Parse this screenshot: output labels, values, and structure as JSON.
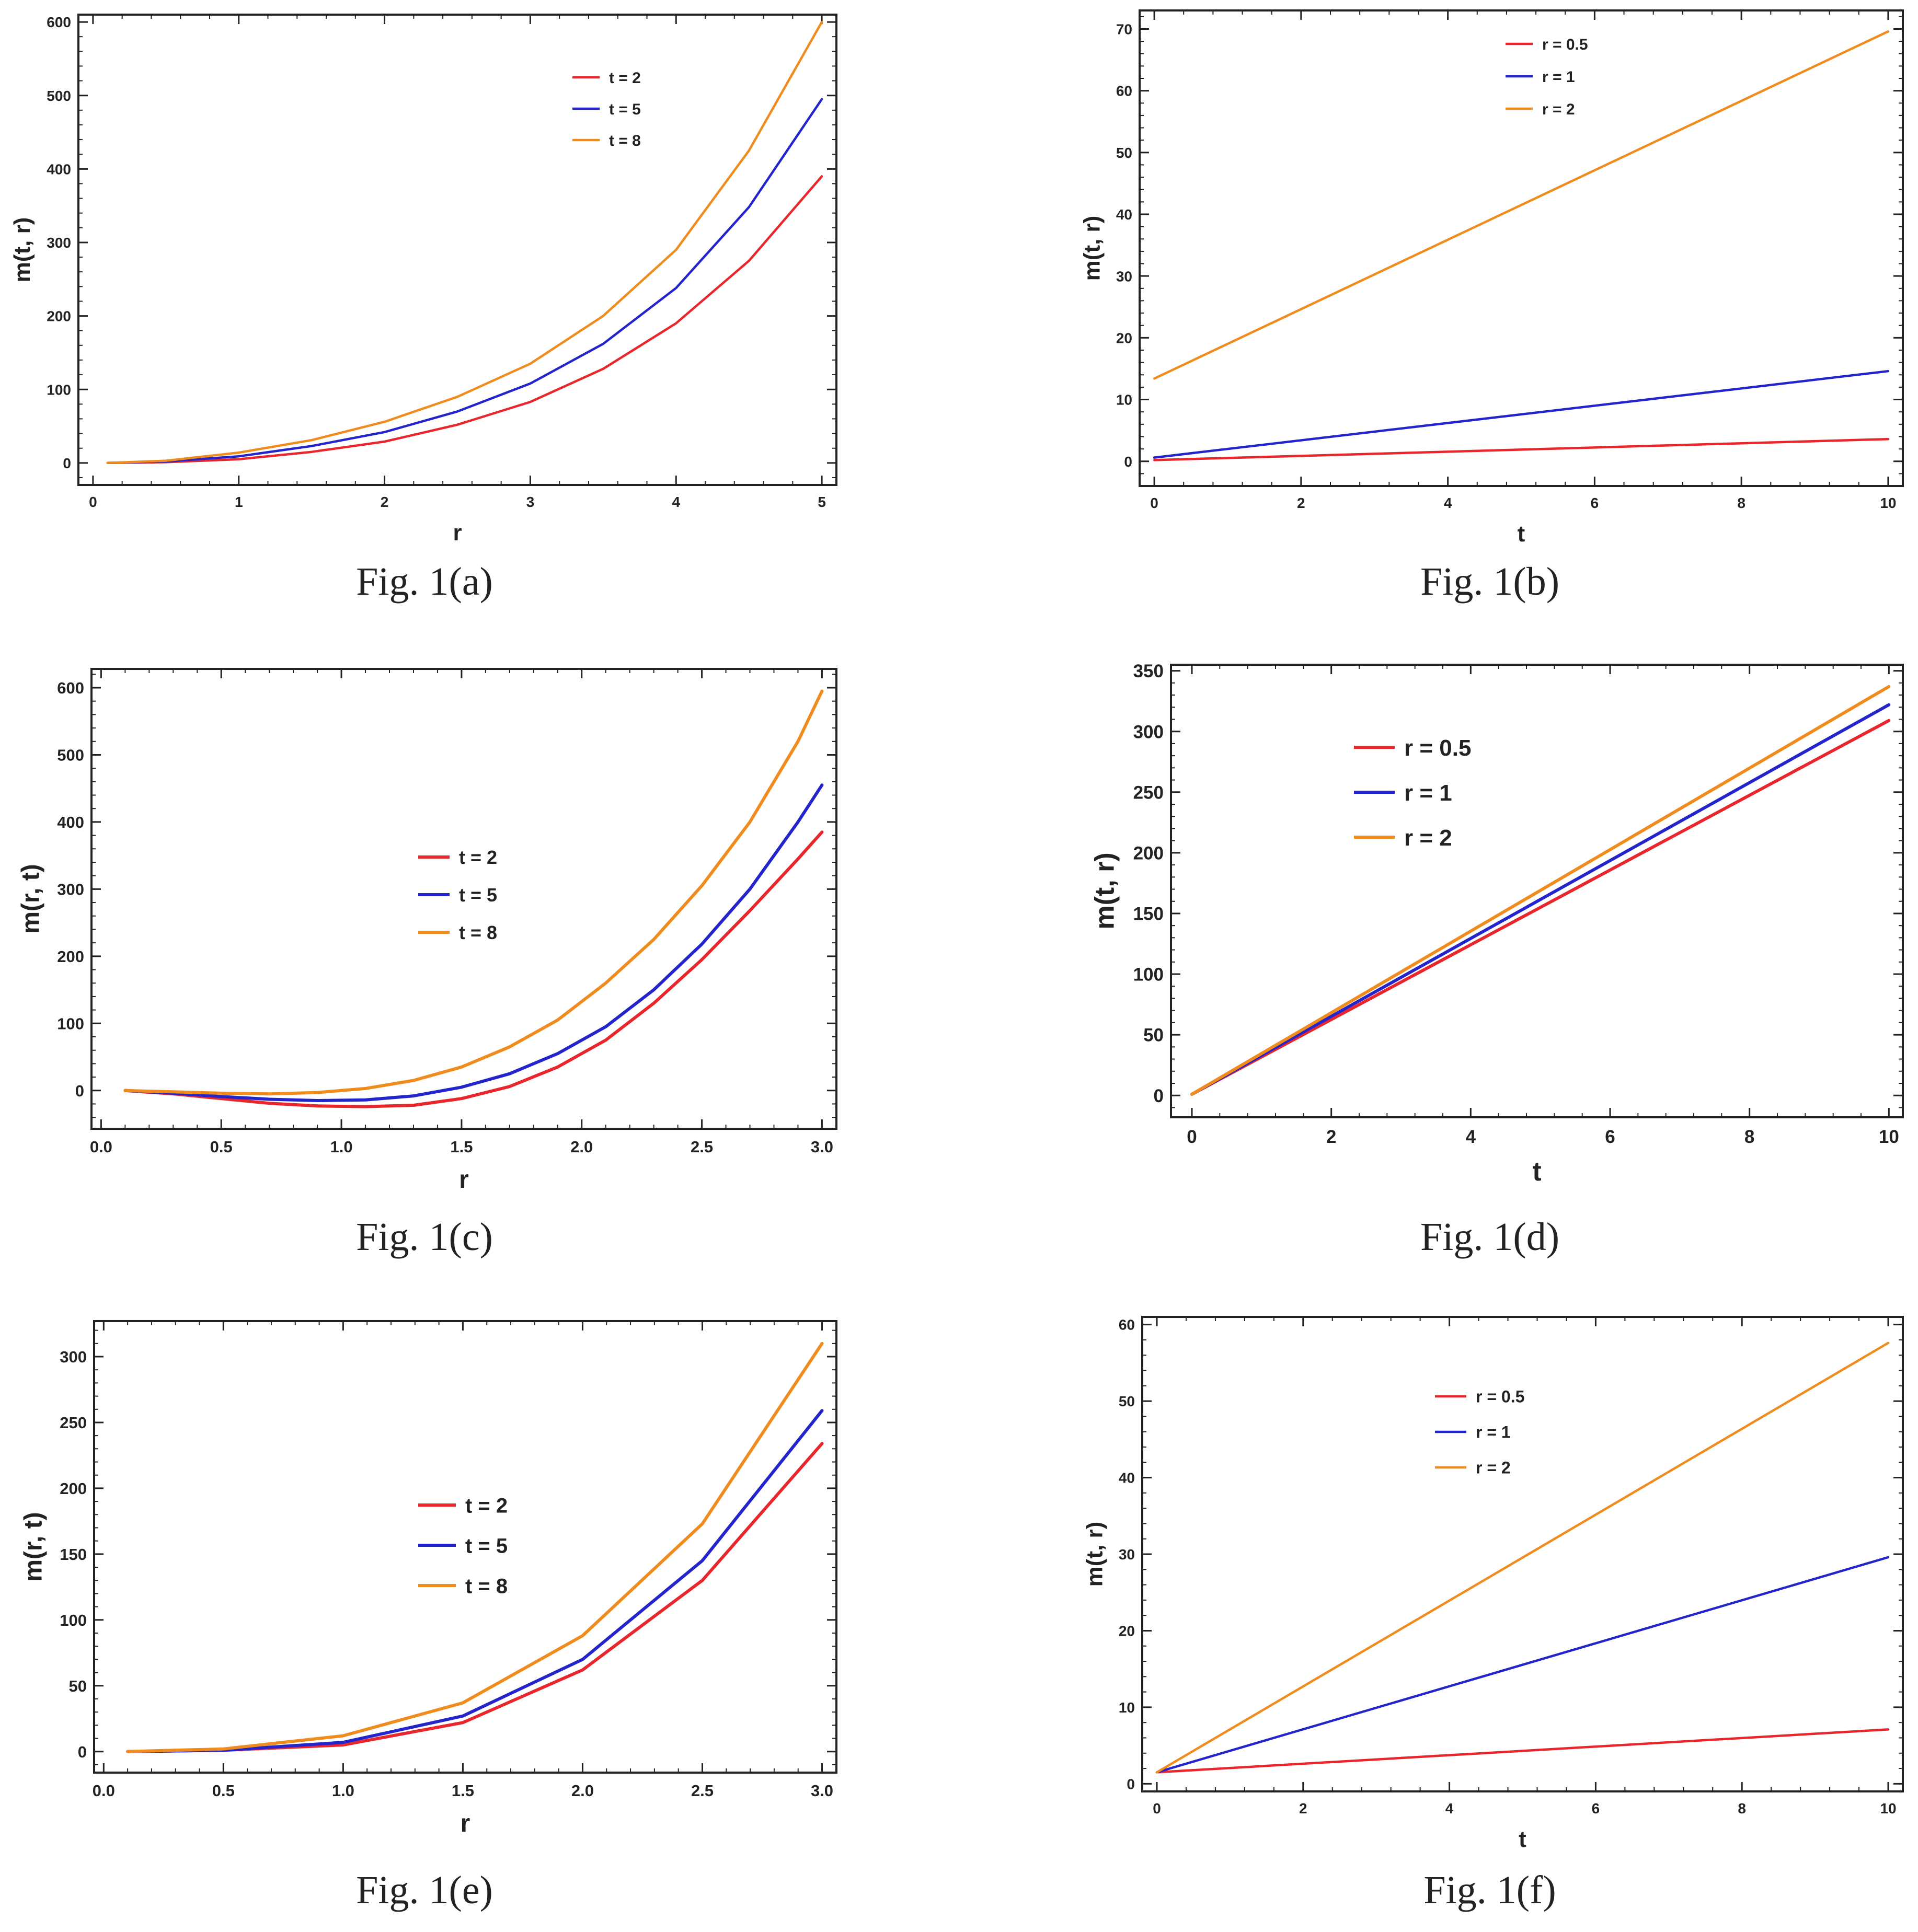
{
  "chart_data": [
    {
      "id": "a",
      "type": "line",
      "caption": "Fig.  1(a)",
      "xlabel": "r",
      "ylabel": "m(t, r)",
      "xlim": [
        -0.1,
        5.1
      ],
      "ylim": [
        -30,
        610
      ],
      "xticks": [
        0,
        1,
        2,
        3,
        4,
        5
      ],
      "xtick_labels": [
        "0",
        "1",
        "2",
        "3",
        "4",
        "5"
      ],
      "yticks": [
        0,
        100,
        200,
        300,
        400,
        500,
        600
      ],
      "ytick_labels": [
        "0",
        "100",
        "200",
        "300",
        "400",
        "500",
        "600"
      ],
      "legend_position": "top-right",
      "x": [
        0.1,
        0.5,
        1,
        1.5,
        2,
        2.5,
        3,
        3.5,
        4,
        4.5,
        5
      ],
      "series": [
        {
          "name": "t = 2",
          "color": "#e8262b",
          "values": [
            0,
            1,
            5,
            15,
            29,
            52,
            83,
            128,
            190,
            275,
            390
          ]
        },
        {
          "name": "t = 5",
          "color": "#2424cc",
          "values": [
            0,
            2,
            9,
            23,
            42,
            70,
            108,
            162,
            238,
            348,
            495
          ]
        },
        {
          "name": "t = 8",
          "color": "#f08c1e",
          "values": [
            0,
            3,
            14,
            31,
            56,
            90,
            135,
            200,
            290,
            425,
            600
          ]
        }
      ]
    },
    {
      "id": "b",
      "type": "line",
      "caption": "Fig.  1(b)",
      "xlabel": "t",
      "ylabel": "m(t, r)",
      "xlim": [
        -0.2,
        10.2
      ],
      "ylim": [
        -4,
        73
      ],
      "xticks": [
        0,
        2,
        4,
        6,
        8,
        10
      ],
      "xtick_labels": [
        "0",
        "2",
        "4",
        "6",
        "8",
        "10"
      ],
      "yticks": [
        0,
        10,
        20,
        30,
        40,
        50,
        60,
        70
      ],
      "ytick_labels": [
        "0",
        "10",
        "20",
        "30",
        "40",
        "50",
        "60",
        "70"
      ],
      "legend_position": "top-center",
      "x": [
        0,
        10
      ],
      "series": [
        {
          "name": "r = 0.5",
          "color": "#e8262b",
          "values": [
            0.2,
            3.6
          ]
        },
        {
          "name": "r = 1",
          "color": "#2424cc",
          "values": [
            0.6,
            14.6
          ]
        },
        {
          "name": "r = 2",
          "color": "#f08c1e",
          "values": [
            13.4,
            69.6
          ]
        }
      ]
    },
    {
      "id": "c",
      "type": "line",
      "caption": "Fig.  1(c)",
      "xlabel": "r",
      "ylabel": "m(r, t)",
      "xlim": [
        -0.04,
        3.06
      ],
      "ylim": [
        -57,
        628
      ],
      "xticks": [
        0,
        0.5,
        1,
        1.5,
        2,
        2.5,
        3
      ],
      "xtick_labels": [
        "0.0",
        "0.5",
        "1.0",
        "1.5",
        "2.0",
        "2.5",
        "3.0"
      ],
      "yticks": [
        0,
        100,
        200,
        300,
        400,
        500,
        600
      ],
      "ytick_labels": [
        "0",
        "100",
        "200",
        "300",
        "400",
        "500",
        "600"
      ],
      "legend_position": "center",
      "x": [
        0.1,
        0.3,
        0.5,
        0.7,
        0.9,
        1.1,
        1.3,
        1.5,
        1.7,
        1.9,
        2.1,
        2.3,
        2.5,
        2.7,
        2.9,
        3.0
      ],
      "series": [
        {
          "name": "t = 2",
          "color": "#e8262b",
          "values": [
            0,
            -5,
            -12,
            -19,
            -23,
            -24,
            -22,
            -12,
            6,
            35,
            75,
            130,
            195,
            268,
            345,
            385
          ]
        },
        {
          "name": "t = 5",
          "color": "#2424cc",
          "values": [
            0,
            -4,
            -9,
            -13,
            -15,
            -14,
            -8,
            5,
            25,
            55,
            95,
            150,
            218,
            300,
            400,
            455
          ]
        },
        {
          "name": "t = 8",
          "color": "#f08c1e",
          "values": [
            0,
            -2,
            -4,
            -5,
            -3,
            3,
            15,
            35,
            65,
            105,
            160,
            225,
            305,
            400,
            520,
            595
          ]
        }
      ]
    },
    {
      "id": "d",
      "type": "line",
      "caption": "Fig.  1(d)",
      "xlabel": "t",
      "ylabel": "m(t, r)",
      "xlim": [
        -0.3,
        10.2
      ],
      "ylim": [
        -18,
        355
      ],
      "xticks": [
        0,
        2,
        4,
        6,
        8,
        10
      ],
      "xtick_labels": [
        "0",
        "2",
        "4",
        "6",
        "8",
        "10"
      ],
      "yticks": [
        0,
        50,
        100,
        150,
        200,
        250,
        300,
        350
      ],
      "ytick_labels": [
        "0",
        "50",
        "100",
        "150",
        "200",
        "250",
        "300",
        "350"
      ],
      "legend_position": "top-left",
      "x": [
        0,
        10
      ],
      "series": [
        {
          "name": "r = 0.5",
          "color": "#e8262b",
          "values": [
            1,
            309
          ]
        },
        {
          "name": "r = 1",
          "color": "#2424cc",
          "values": [
            1,
            322
          ]
        },
        {
          "name": "r = 2",
          "color": "#f08c1e",
          "values": [
            1,
            337
          ]
        }
      ]
    },
    {
      "id": "e",
      "type": "line",
      "caption": "Fig.  1(e)",
      "xlabel": "r",
      "ylabel": "m(r, t)",
      "xlim": [
        -0.04,
        3.06
      ],
      "ylim": [
        -16,
        327
      ],
      "xticks": [
        0,
        0.5,
        1,
        1.5,
        2,
        2.5,
        3
      ],
      "xtick_labels": [
        "0.0",
        "0.5",
        "1.0",
        "1.5",
        "2.0",
        "2.5",
        "3.0"
      ],
      "yticks": [
        0,
        50,
        100,
        150,
        200,
        250,
        300
      ],
      "ytick_labels": [
        "0",
        "50",
        "100",
        "150",
        "200",
        "250",
        "300"
      ],
      "legend_position": "center",
      "x": [
        0.1,
        0.5,
        1,
        1.5,
        2,
        2.5,
        3
      ],
      "series": [
        {
          "name": "t = 2",
          "color": "#e8262b",
          "values": [
            0,
            1,
            5,
            22,
            62,
            130,
            234
          ]
        },
        {
          "name": "t = 5",
          "color": "#2424cc",
          "values": [
            0,
            1,
            7,
            27,
            70,
            145,
            259
          ]
        },
        {
          "name": "t = 8",
          "color": "#f08c1e",
          "values": [
            0,
            2,
            12,
            37,
            88,
            173,
            310
          ]
        }
      ]
    },
    {
      "id": "f",
      "type": "line",
      "caption": "Fig.  1(f)",
      "xlabel": "t",
      "ylabel": "m(t, r)",
      "xlim": [
        -0.2,
        10.2
      ],
      "ylim": [
        -1,
        61
      ],
      "xticks": [
        0,
        2,
        4,
        6,
        8,
        10
      ],
      "xtick_labels": [
        "0",
        "2",
        "4",
        "6",
        "8",
        "10"
      ],
      "yticks": [
        0,
        10,
        20,
        30,
        40,
        50,
        60
      ],
      "ytick_labels": [
        "0",
        "10",
        "20",
        "30",
        "40",
        "50",
        "60"
      ],
      "legend_position": "top-center",
      "x": [
        0,
        10
      ],
      "series": [
        {
          "name": "r = 0.5",
          "color": "#e8262b",
          "values": [
            1.5,
            7.1
          ]
        },
        {
          "name": "r = 1",
          "color": "#2424cc",
          "values": [
            1.5,
            29.6
          ]
        },
        {
          "name": "r = 2",
          "color": "#f08c1e",
          "values": [
            1.5,
            57.6
          ]
        }
      ]
    }
  ]
}
